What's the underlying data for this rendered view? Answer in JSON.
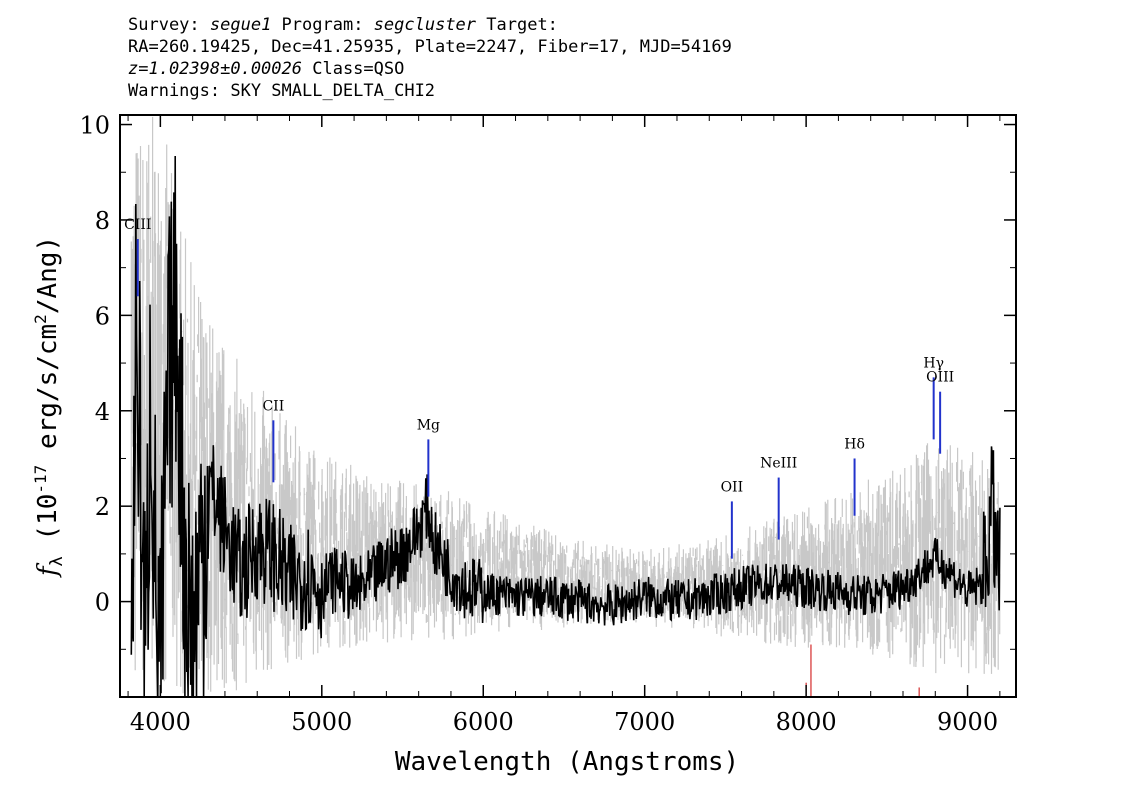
{
  "header": {
    "line1": {
      "survey_key": "Survey: ",
      "survey": "segue1",
      "program_key": " Program: ",
      "program": "segcluster",
      "target_key": " Target:"
    },
    "line2": "RA=260.19425, Dec=41.25935, Plate=2247, Fiber=17, MJD=54169",
    "line3": {
      "z": "z=1.02398±0.00026",
      "class": " Class=QSO"
    },
    "line4": "Warnings: SKY SMALL_DELTA_CHI2"
  },
  "chart_data": {
    "type": "line",
    "xlabel": "Wavelength (Angstroms)",
    "ylabel": "f_λ (10^-17 erg/s/cm^2/Ang)",
    "xlim": [
      3750,
      9300
    ],
    "ylim": [
      -2,
      10.2
    ],
    "x_ticks": [
      4000,
      5000,
      6000,
      7000,
      8000,
      9000
    ],
    "y_ticks": [
      0,
      2,
      4,
      6,
      8,
      10
    ],
    "grid": false,
    "series": [
      {
        "role": "error band",
        "color": "#c8c8c8",
        "x": [
          3820,
          3850,
          3900,
          3950,
          4000,
          4050,
          4100,
          4200,
          4300,
          4400,
          4500,
          4600,
          4700,
          4800,
          4900,
          5000,
          5200,
          5400,
          5600,
          5800,
          6000,
          6200,
          6400,
          6600,
          6800,
          7000,
          7200,
          7400,
          7600,
          7800,
          8000,
          8200,
          8400,
          8600,
          8800,
          9000,
          9200
        ],
        "upper": [
          10.2,
          10.2,
          10.2,
          10.2,
          10.2,
          9.5,
          8.5,
          7.0,
          6.2,
          5.5,
          5.0,
          4.6,
          4.2,
          3.8,
          3.5,
          3.2,
          2.9,
          2.6,
          2.5,
          2.3,
          2.0,
          1.8,
          1.5,
          1.3,
          1.2,
          1.1,
          1.2,
          1.3,
          1.5,
          1.8,
          2.0,
          2.3,
          2.6,
          3.0,
          3.5,
          3.2,
          2.8
        ],
        "lower": [
          -2,
          -2,
          -2,
          -2,
          -2,
          -2,
          -2,
          -2,
          -2,
          -2,
          -1.9,
          -1.7,
          -1.5,
          -1.3,
          -1.2,
          -1.1,
          -1.0,
          -0.9,
          -0.8,
          -0.8,
          -0.7,
          -0.6,
          -0.6,
          -0.5,
          -0.5,
          -0.5,
          -0.6,
          -0.7,
          -0.8,
          -0.9,
          -1.0,
          -1.0,
          -1.1,
          -1.3,
          -1.5,
          -1.6,
          -1.6
        ]
      },
      {
        "role": "flux",
        "color": "#000000",
        "x": [
          3820,
          3850,
          3880,
          3910,
          3940,
          3970,
          4000,
          4050,
          4100,
          4150,
          4200,
          4300,
          4400,
          4500,
          4600,
          4700,
          4800,
          4900,
          5000,
          5100,
          5200,
          5300,
          5400,
          5500,
          5600,
          5650,
          5700,
          5800,
          5900,
          6000,
          6200,
          6400,
          6600,
          6800,
          7000,
          7200,
          7400,
          7600,
          7800,
          8000,
          8200,
          8400,
          8600,
          8800,
          8900,
          9000,
          9100,
          9150,
          9200
        ],
        "y": [
          -1.8,
          6.0,
          2.5,
          -1.5,
          5.0,
          0.5,
          -1.6,
          4.5,
          6.3,
          1.0,
          -0.8,
          2.5,
          1.5,
          0.6,
          1.2,
          1.0,
          0.4,
          0.6,
          0.3,
          0.5,
          0.2,
          0.4,
          0.8,
          1.0,
          1.5,
          2.0,
          1.2,
          0.6,
          0.3,
          0.2,
          0.1,
          0.1,
          0.0,
          -0.1,
          0.1,
          0.0,
          0.1,
          0.3,
          0.4,
          0.3,
          0.2,
          0.1,
          0.3,
          0.9,
          0.6,
          0.2,
          0.4,
          2.0,
          0.5
        ]
      }
    ],
    "line_markers": [
      {
        "label": "CIII",
        "x": 3860,
        "y_low": 6.4,
        "y_high": 7.6
      },
      {
        "label": "CII",
        "x": 4700,
        "y_low": 2.5,
        "y_high": 3.8
      },
      {
        "label": "Mg",
        "x": 5660,
        "y_low": 2.2,
        "y_high": 3.4
      },
      {
        "label": "OII",
        "x": 7540,
        "y_low": 0.9,
        "y_high": 2.1
      },
      {
        "label": "NeIII",
        "x": 7830,
        "y_low": 1.3,
        "y_high": 2.6
      },
      {
        "label": "Hδ",
        "x": 8300,
        "y_low": 1.8,
        "y_high": 3.0
      },
      {
        "label": "Hγ",
        "x": 8790,
        "y_low": 3.4,
        "y_high": 4.7
      },
      {
        "label": "OIII",
        "x": 8830,
        "y_low": 3.1,
        "y_high": 4.4
      }
    ],
    "sky_markers_color": "#cc0000",
    "marker_color": "#2233cc"
  }
}
